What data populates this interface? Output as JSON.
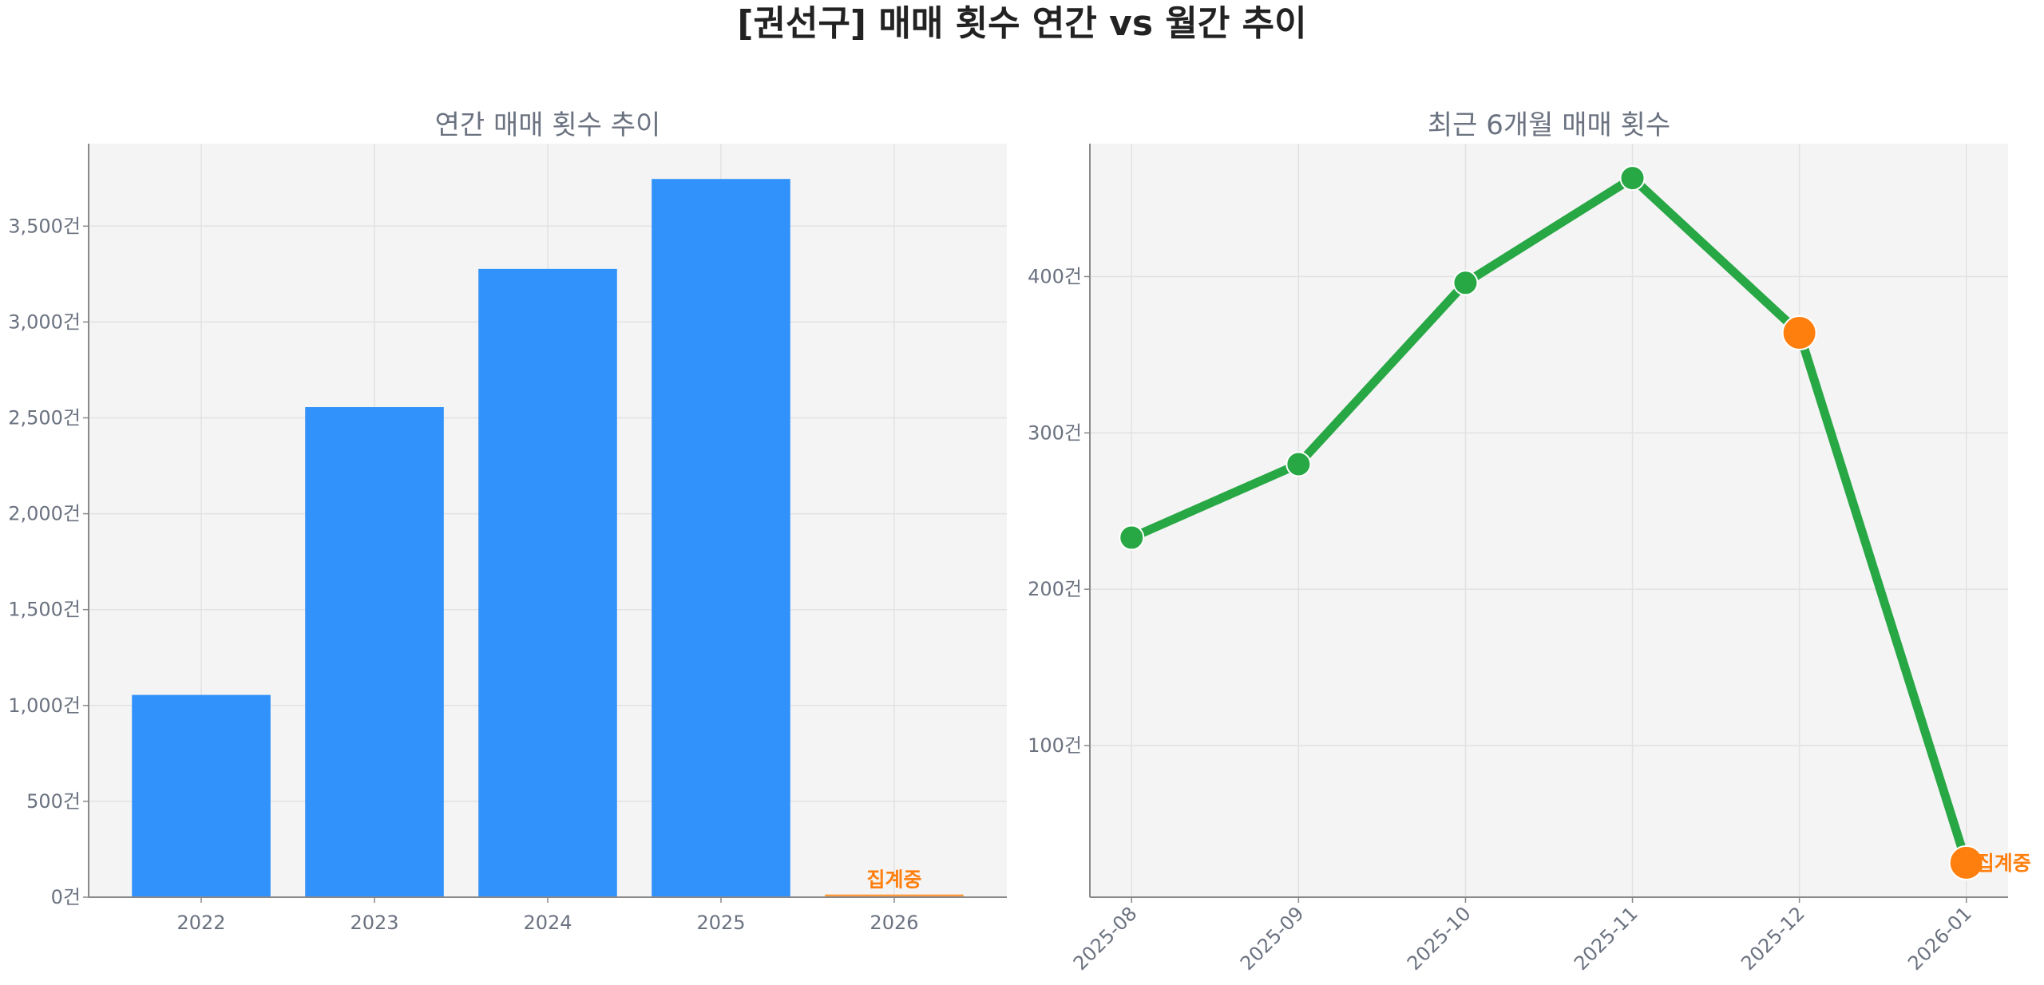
{
  "title": "[권선구] 매매 횟수 연간 vs 월간 추이",
  "colors": {
    "bar": "#3192fb",
    "bar_partial": "#ff9a3c",
    "line": "#28a745",
    "highlight": "#ff7f0e",
    "axes_bg": "#f4f4f4"
  },
  "chart_data": [
    {
      "type": "bar",
      "title": "연간 매매 횟수 추이",
      "categories": [
        "2022",
        "2023",
        "2024",
        "2025",
        "2026"
      ],
      "values": [
        1055,
        2556,
        3277,
        3746,
        14
      ],
      "partial_category": "2026",
      "annotation": "집계중",
      "yticks": [
        0,
        500,
        1000,
        1500,
        2000,
        2500,
        3000,
        3500
      ],
      "ytick_labels": [
        "0건",
        "500건",
        "1,000건",
        "1,500건",
        "2,000건",
        "2,500건",
        "3,000건",
        "3,500건"
      ],
      "ylim": [
        0,
        3930
      ],
      "grid": true
    },
    {
      "type": "line",
      "title": "최근 6개월 매매 횟수",
      "x": [
        "2025-08",
        "2025-09",
        "2025-10",
        "2025-11",
        "2025-12",
        "2026-01"
      ],
      "values": [
        233,
        280,
        396,
        463,
        364,
        25
      ],
      "highlighted": [
        "2025-12",
        "2026-01"
      ],
      "annotation": "집계중",
      "yticks": [
        100,
        200,
        300,
        400
      ],
      "ytick_labels": [
        "100건",
        "200건",
        "300건",
        "400건"
      ],
      "ylim": [
        3,
        485
      ],
      "grid": true
    }
  ]
}
